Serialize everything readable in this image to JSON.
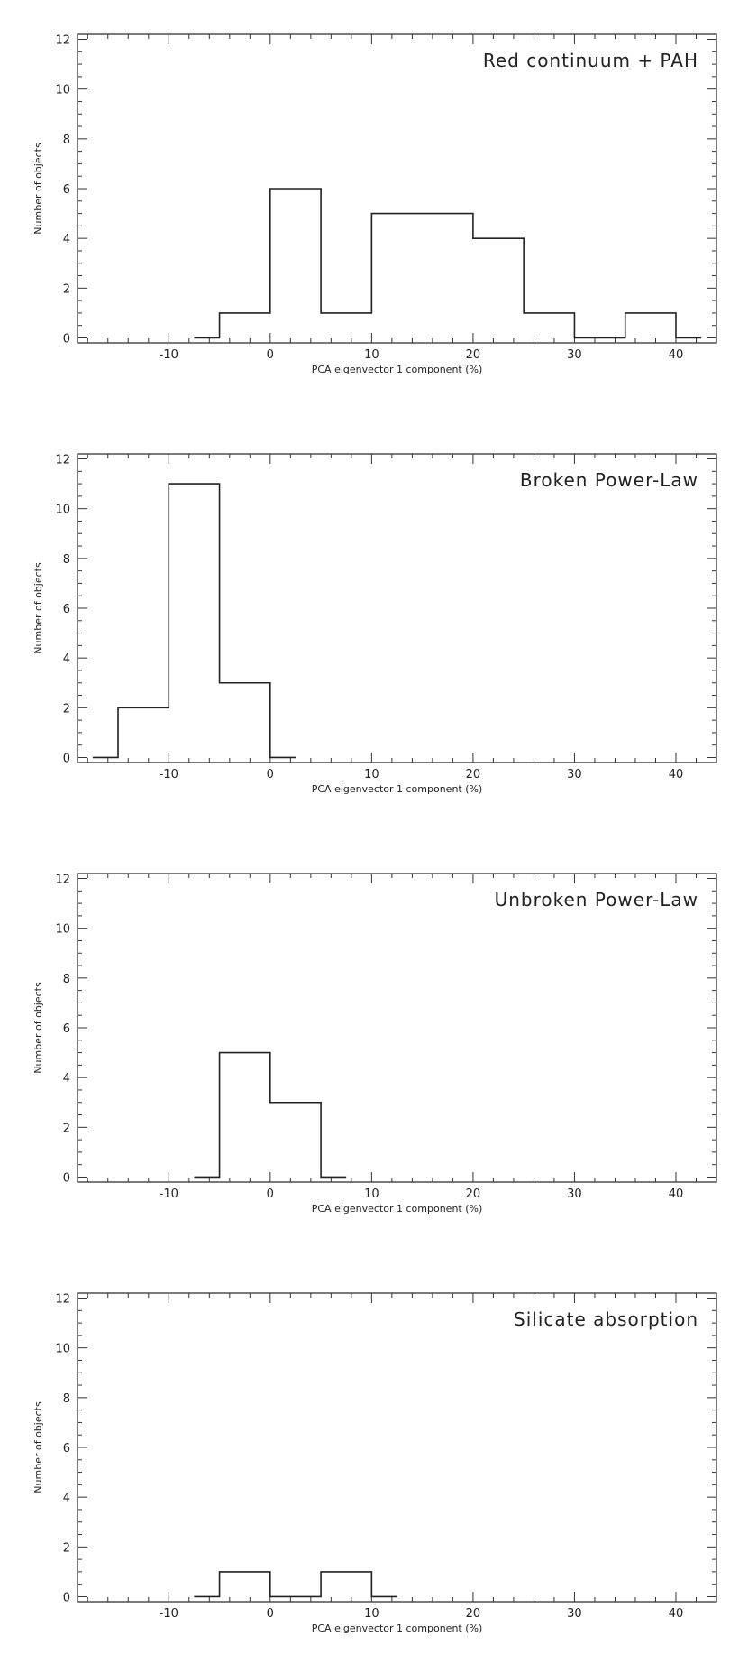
{
  "chart_data": [
    {
      "type": "histogram",
      "title": "Red continuum + PAH",
      "xlabel": "PCA eigenvector 1 component (%)",
      "ylabel": "Number of objects",
      "xlim": [
        -19,
        44
      ],
      "ylim": [
        -0.2,
        12.2
      ],
      "xticks": [
        -10,
        0,
        10,
        20,
        30,
        40
      ],
      "yticks": [
        0,
        2,
        4,
        6,
        8,
        10,
        12
      ],
      "bin_edges": [
        -7.5,
        -5,
        0,
        5,
        10,
        20,
        25,
        30,
        35,
        40,
        42.5
      ],
      "counts": [
        0,
        1,
        6,
        1,
        5,
        4,
        1,
        0,
        1,
        0
      ]
    },
    {
      "type": "histogram",
      "title": "Broken Power-Law",
      "xlabel": "PCA eigenvector 1 component (%)",
      "ylabel": "Number of objects",
      "xlim": [
        -19,
        44
      ],
      "ylim": [
        -0.2,
        12.2
      ],
      "xticks": [
        -10,
        0,
        10,
        20,
        30,
        40
      ],
      "yticks": [
        0,
        2,
        4,
        6,
        8,
        10,
        12
      ],
      "bin_edges": [
        -17.5,
        -15,
        -10,
        -5,
        0,
        2.5
      ],
      "counts": [
        0,
        2,
        11,
        3,
        0
      ]
    },
    {
      "type": "histogram",
      "title": "Unbroken Power-Law",
      "xlabel": "PCA eigenvector 1 component (%)",
      "ylabel": "Number of objects",
      "xlim": [
        -19,
        44
      ],
      "ylim": [
        -0.2,
        12.2
      ],
      "xticks": [
        -10,
        0,
        10,
        20,
        30,
        40
      ],
      "yticks": [
        0,
        2,
        4,
        6,
        8,
        10,
        12
      ],
      "bin_edges": [
        -7.5,
        -5,
        0,
        5,
        7.5
      ],
      "counts": [
        0,
        5,
        3,
        0
      ]
    },
    {
      "type": "histogram",
      "title": "Silicate absorption",
      "xlabel": "PCA eigenvector 1 component (%)",
      "ylabel": "Number of objects",
      "xlim": [
        -19,
        44
      ],
      "ylim": [
        -0.2,
        12.2
      ],
      "xticks": [
        -10,
        0,
        10,
        20,
        30,
        40
      ],
      "yticks": [
        0,
        2,
        4,
        6,
        8,
        10,
        12
      ],
      "bin_edges": [
        -7.5,
        -5,
        0,
        5,
        10,
        12.5
      ],
      "counts": [
        0,
        1,
        0,
        1,
        0
      ]
    }
  ]
}
